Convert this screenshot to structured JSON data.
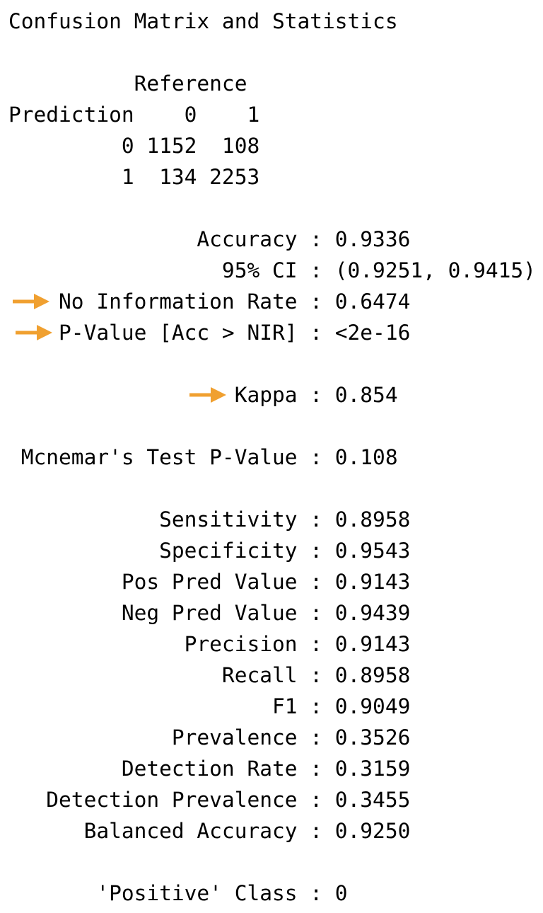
{
  "title": "Confusion Matrix and Statistics",
  "matrix": {
    "reference_header": "          Reference",
    "columns_line": "Prediction    0    1",
    "row0_line": "         0 1152  108",
    "row1_line": "         1  134 2253"
  },
  "stats": {
    "accuracy": "               Accuracy : 0.9336",
    "ci": "                 95% CI : (0.9251, 0.9415)",
    "nir": "    No Information Rate : 0.6474",
    "pvalue": "    P-Value [Acc > NIR] : <2e-16",
    "kappa": "                  Kappa : 0.854",
    "mcnemar": " Mcnemar's Test P-Value : 0.108",
    "sensitivity": "            Sensitivity : 0.8958",
    "specificity": "            Specificity : 0.9543",
    "pos_pred": "         Pos Pred Value : 0.9143",
    "neg_pred": "         Neg Pred Value : 0.9439",
    "precision": "              Precision : 0.9143",
    "recall": "                 Recall : 0.8958",
    "f1": "                     F1 : 0.9049",
    "prevalence": "             Prevalence : 0.3526",
    "detection_rate": "         Detection Rate : 0.3159",
    "detection_prevalence": "   Detection Prevalence : 0.3455",
    "balanced_accuracy": "      Balanced Accuracy : 0.9250",
    "positive_class": "       'Positive' Class : 0"
  },
  "colors": {
    "arrow": "#F0A030",
    "text": "#000000",
    "background": "#FFFFFF"
  },
  "icons": [
    "arrow-right-icon"
  ]
}
